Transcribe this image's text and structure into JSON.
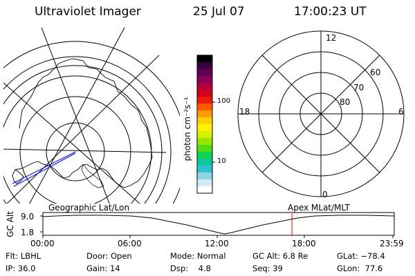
{
  "header": {
    "title": "Ultraviolet Imager",
    "date": "25 Jul 07",
    "time": "17:00:23 UT"
  },
  "colorbar": {
    "unit_label": "photon cm⁻²s⁻¹",
    "tick_100": "100",
    "tick_10": "10",
    "colors": [
      "#000000",
      "#3a003e",
      "#5e0058",
      "#8a0058",
      "#b0003e",
      "#d40020",
      "#ef1a0a",
      "#ff5a00",
      "#ff9a00",
      "#ffd000",
      "#fff200",
      "#d4f200",
      "#96e600",
      "#50dc10",
      "#10d250",
      "#10c8a0",
      "#30c0d0",
      "#8fd4e4",
      "#d2eaf2",
      "#ffffff"
    ]
  },
  "polar_plot": {
    "top_label": "12",
    "bottom_label": "0",
    "left_label": "18",
    "right_label": "6",
    "ring_labels": [
      "60",
      "70",
      "80"
    ]
  },
  "timeline": {
    "left_caption": "Geographic Lat/Lon",
    "right_caption": "Apex MLat/MLT",
    "axis_label": "GC Alt",
    "y_ticks": [
      "9.0",
      "1.8"
    ],
    "x_ticks": [
      "00:00",
      "06:00",
      "12:00",
      "18:00",
      "23:59"
    ],
    "cursor_time": "17:00"
  },
  "info": {
    "flt": "Flt: LBHL",
    "door": "Door: Open",
    "mode": "Mode: Normal",
    "gc_alt": "GC Alt: 6.8 Re",
    "glat": "GLat: −78.4",
    "ip": "IP: 36.0",
    "gain": "Gain: 14",
    "dsp": "Dsp:    4.8",
    "seq": "Seq: 39",
    "glon": "GLon:  77.6"
  }
}
